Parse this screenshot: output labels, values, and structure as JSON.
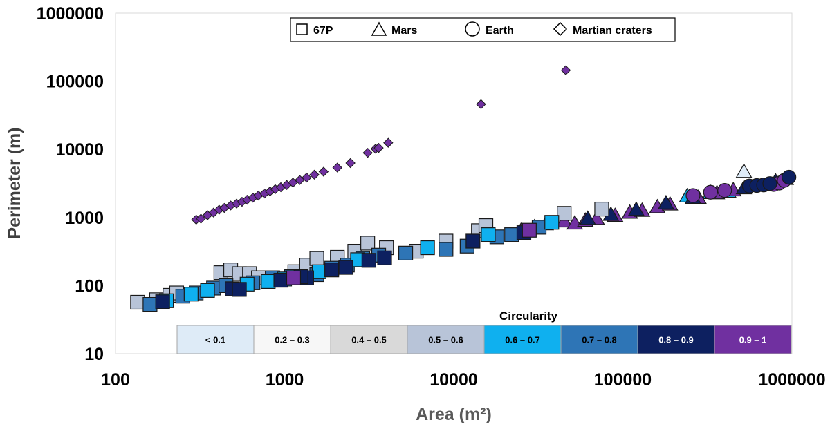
{
  "chart_data": {
    "type": "scatter",
    "xscale": "log",
    "yscale": "log",
    "xlim": [
      100,
      1000000
    ],
    "ylim": [
      10,
      1000000
    ],
    "xlabel": "Area (m²)",
    "ylabel": "Perimeter (m)",
    "xticks": [
      "100",
      "1000",
      "10000",
      "100000",
      "1000000"
    ],
    "yticks": [
      "10",
      "100",
      "1000",
      "10000",
      "100000",
      "1000000"
    ],
    "legend": [
      {
        "name": "67P",
        "marker": "square"
      },
      {
        "name": "Mars",
        "marker": "triangle"
      },
      {
        "name": "Earth",
        "marker": "circle"
      },
      {
        "name": "Martian craters",
        "marker": "diamond"
      }
    ],
    "colorbar": {
      "title": "Circularity",
      "classes": [
        {
          "label": "< 0.1",
          "color": "#deebf7",
          "text_color": "#000000"
        },
        {
          "label": "0.2 – 0.3",
          "color": "#f7f7f7",
          "text_color": "#000000"
        },
        {
          "label": "0.4 – 0.5",
          "color": "#d9d9d9",
          "text_color": "#000000"
        },
        {
          "label": "0.5 – 0.6",
          "color": "#b8c4d8",
          "text_color": "#000000"
        },
        {
          "label": "0.6 – 0.7",
          "color": "#0fb0ef",
          "text_color": "#000000"
        },
        {
          "label": "0.7 – 0.8",
          "color": "#2e75b6",
          "text_color": "#000000"
        },
        {
          "label": "0.8 – 0.9",
          "color": "#0d2060",
          "text_color": "#ffffff"
        },
        {
          "label": "0.9 – 1",
          "color": "#7030a0",
          "text_color": "#ffffff"
        }
      ]
    },
    "series": [
      {
        "name": "Martian craters",
        "marker": "diamond",
        "class": 7,
        "points": [
          [
            300,
            930
          ],
          [
            320,
            960
          ],
          [
            350,
            1080
          ],
          [
            380,
            1180
          ],
          [
            410,
            1300
          ],
          [
            440,
            1380
          ],
          [
            480,
            1500
          ],
          [
            520,
            1600
          ],
          [
            560,
            1700
          ],
          [
            600,
            1820
          ],
          [
            650,
            1950
          ],
          [
            700,
            2100
          ],
          [
            760,
            2250
          ],
          [
            820,
            2420
          ],
          [
            880,
            2600
          ],
          [
            950,
            2780
          ],
          [
            1030,
            3000
          ],
          [
            1120,
            3250
          ],
          [
            1230,
            3550
          ],
          [
            1350,
            3850
          ],
          [
            1500,
            4250
          ],
          [
            1700,
            4700
          ],
          [
            2050,
            5400
          ],
          [
            2450,
            6300
          ],
          [
            3100,
            8900
          ],
          [
            3450,
            10200
          ],
          [
            3600,
            10500
          ],
          [
            4100,
            12500
          ],
          [
            14500,
            46000
          ],
          [
            46000,
            145000
          ]
        ]
      },
      {
        "name": "Mars",
        "marker": "triangle",
        "class": 0,
        "points": [
          [
            520000,
            4700
          ]
        ]
      },
      {
        "name": "Mars",
        "marker": "triangle",
        "class": 4,
        "points": [
          [
            240000,
            2050
          ],
          [
            330000,
            2300
          ],
          [
            420000,
            2400
          ]
        ]
      },
      {
        "name": "Mars",
        "marker": "triangle",
        "class": 7,
        "points": [
          [
            25000,
            640
          ],
          [
            30000,
            720
          ],
          [
            35000,
            800
          ],
          [
            45000,
            880
          ],
          [
            52000,
            820
          ],
          [
            60000,
            900
          ],
          [
            70000,
            960
          ],
          [
            90000,
            1060
          ],
          [
            110000,
            1180
          ],
          [
            130000,
            1260
          ],
          [
            160000,
            1420
          ],
          [
            190000,
            1560
          ],
          [
            280000,
            1950
          ],
          [
            360000,
            2280
          ],
          [
            450000,
            2520
          ]
        ]
      },
      {
        "name": "Mars",
        "marker": "triangle",
        "class": 6,
        "points": [
          [
            62000,
            960
          ],
          [
            85000,
            1100
          ],
          [
            120000,
            1300
          ],
          [
            180000,
            1620
          ],
          [
            260000,
            1950
          ],
          [
            520000,
            2700
          ],
          [
            800000,
            3400
          ],
          [
            920000,
            3700
          ]
        ]
      },
      {
        "name": "Earth",
        "marker": "circle",
        "class": 7,
        "points": [
          [
            260000,
            2100
          ],
          [
            330000,
            2350
          ],
          [
            400000,
            2500
          ],
          [
            780000,
            3050
          ],
          [
            840000,
            3200
          ],
          [
            900000,
            3500
          ]
        ]
      },
      {
        "name": "Earth",
        "marker": "circle",
        "class": 6,
        "points": [
          [
            560000,
            2900
          ],
          [
            620000,
            2950
          ],
          [
            680000,
            3000
          ],
          [
            740000,
            3150
          ],
          [
            960000,
            3900
          ]
        ]
      },
      {
        "name": "67P",
        "marker": "square",
        "class": 3,
        "points": [
          [
            135,
            57
          ],
          [
            175,
            62
          ],
          [
            210,
            72
          ],
          [
            230,
            78
          ],
          [
            420,
            155
          ],
          [
            480,
            170
          ],
          [
            540,
            150
          ],
          [
            620,
            150
          ],
          [
            700,
            130
          ],
          [
            1150,
            160
          ],
          [
            1350,
            200
          ],
          [
            1550,
            250
          ],
          [
            2050,
            260
          ],
          [
            2600,
            320
          ],
          [
            3100,
            420
          ],
          [
            4000,
            360
          ],
          [
            6000,
            320
          ],
          [
            9000,
            450
          ],
          [
            14000,
            640
          ],
          [
            15500,
            760
          ],
          [
            45000,
            1150
          ],
          [
            75000,
            1330
          ]
        ]
      },
      {
        "name": "67P",
        "marker": "square",
        "class": 5,
        "points": [
          [
            160,
            53
          ],
          [
            250,
            70
          ],
          [
            300,
            78
          ],
          [
            380,
            92
          ],
          [
            450,
            100
          ],
          [
            650,
            110
          ],
          [
            850,
            130
          ],
          [
            1100,
            135
          ],
          [
            1550,
            145
          ],
          [
            1900,
            180
          ],
          [
            2350,
            200
          ],
          [
            2900,
            250
          ],
          [
            3600,
            280
          ],
          [
            5200,
            300
          ],
          [
            9000,
            340
          ],
          [
            12000,
            380
          ],
          [
            18000,
            520
          ],
          [
            22000,
            560
          ],
          [
            32000,
            720
          ]
        ]
      },
      {
        "name": "67P",
        "marker": "square",
        "class": 4,
        "points": [
          [
            200,
            60
          ],
          [
            280,
            75
          ],
          [
            350,
            85
          ],
          [
            600,
            105
          ],
          [
            800,
            115
          ],
          [
            1000,
            125
          ],
          [
            1600,
            160
          ],
          [
            2700,
            240
          ],
          [
            7000,
            360
          ],
          [
            16000,
            560
          ],
          [
            38000,
            850
          ]
        ]
      },
      {
        "name": "67P",
        "marker": "square",
        "class": 6,
        "points": [
          [
            190,
            58
          ],
          [
            490,
            90
          ],
          [
            540,
            88
          ],
          [
            950,
            120
          ],
          [
            1350,
            130
          ],
          [
            1250,
            135
          ],
          [
            1900,
            170
          ],
          [
            2300,
            185
          ],
          [
            3150,
            235
          ],
          [
            3900,
            255
          ],
          [
            13000,
            450
          ],
          [
            26000,
            600
          ]
        ]
      },
      {
        "name": "67P",
        "marker": "square",
        "class": 7,
        "points": [
          [
            1130,
            130
          ],
          [
            28000,
            650
          ]
        ]
      }
    ]
  }
}
